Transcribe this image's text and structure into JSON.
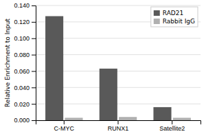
{
  "chart_data": {
    "type": "bar",
    "ylabel": "Relative Enrichment to Input",
    "categories": [
      "C-MYC",
      "RUNX1",
      "Satellite2"
    ],
    "series": [
      {
        "name": "RAD21",
        "color": "#595959",
        "values": [
          0.127,
          0.063,
          0.016
        ]
      },
      {
        "name": "Rabbit IgG",
        "color": "#b0b0b0",
        "values": [
          0.003,
          0.004,
          0.003
        ]
      }
    ],
    "ylim": [
      0.0,
      0.14
    ],
    "yticks": [
      {
        "value": 0.0,
        "label": "0.000"
      },
      {
        "value": 0.02,
        "label": "0.020"
      },
      {
        "value": 0.04,
        "label": "0.040"
      },
      {
        "value": 0.06,
        "label": "0.060"
      },
      {
        "value": 0.08,
        "label": "0.080"
      },
      {
        "value": 0.1,
        "label": "0.100"
      },
      {
        "value": 0.12,
        "label": "0.120"
      },
      {
        "value": 0.14,
        "label": "0.140"
      }
    ],
    "grid": true,
    "legend": "upper right"
  }
}
